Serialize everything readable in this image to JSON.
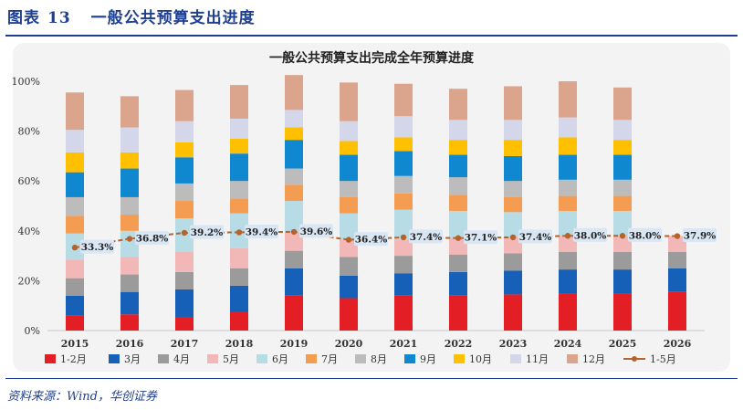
{
  "figure": {
    "label": "图表",
    "number": "13",
    "title": "一般公共预算支出进度"
  },
  "source": "资料来源：Wind，华创证券",
  "chart_data": {
    "type": "bar",
    "stacked": true,
    "title": "一般公共预算支出完成全年预算进度",
    "xlabel": "",
    "ylabel": "",
    "ylim": [
      0,
      100
    ],
    "yticks": [
      "0%",
      "20%",
      "40%",
      "60%",
      "80%",
      "100%"
    ],
    "categories": [
      "2015",
      "2016",
      "2017",
      "2018",
      "2019",
      "2020",
      "2021",
      "2022",
      "2023",
      "2024",
      "2025",
      "2026"
    ],
    "series": [
      {
        "name": "1-2月",
        "color": "#e31e24",
        "values": [
          6,
          6.5,
          5.5,
          7.5,
          14,
          13,
          14,
          14,
          14.5,
          15,
          15,
          15.5
        ]
      },
      {
        "name": "3月",
        "color": "#1660b8",
        "values": [
          8,
          9,
          11,
          10.5,
          11,
          9,
          9,
          9.5,
          9.5,
          9.5,
          9.5,
          9.5
        ]
      },
      {
        "name": "4月",
        "color": "#9b9b9b",
        "values": [
          7,
          7,
          7,
          7,
          7,
          7.5,
          7,
          7,
          7,
          7,
          7,
          6.5
        ]
      },
      {
        "name": "5月",
        "color": "#f2b7b7",
        "values": [
          7.5,
          7,
          8,
          8,
          7.5,
          7,
          6.5,
          6.5,
          6.5,
          6.5,
          6.5,
          6.5
        ]
      },
      {
        "name": "6月",
        "color": "#b8dce6",
        "values": [
          10.5,
          10.5,
          13.5,
          14,
          12.5,
          10.5,
          12,
          11,
          10,
          10,
          10,
          0
        ]
      },
      {
        "name": "7月",
        "color": "#f39c52",
        "values": [
          7,
          6.5,
          7,
          6,
          6.5,
          6.5,
          6.5,
          6.5,
          6,
          6,
          6,
          0
        ]
      },
      {
        "name": "8月",
        "color": "#bcbcbc",
        "values": [
          7.5,
          7,
          7,
          7,
          6.5,
          6.5,
          7,
          7,
          6.5,
          6.5,
          6.5,
          0
        ]
      },
      {
        "name": "9月",
        "color": "#1088d0",
        "values": [
          10,
          11.5,
          10.5,
          11,
          11.5,
          10.5,
          10,
          9,
          10,
          10,
          10,
          0
        ]
      },
      {
        "name": "10月",
        "color": "#ffc000",
        "values": [
          8,
          6.5,
          6,
          6,
          5,
          5.5,
          5.5,
          6,
          6.5,
          7,
          6,
          0
        ]
      },
      {
        "name": "11月",
        "color": "#d4d6ea",
        "values": [
          9,
          10,
          8.5,
          8,
          7,
          8,
          8.5,
          8,
          8,
          8,
          8,
          0
        ]
      },
      {
        "name": "12月",
        "color": "#dba48c",
        "values": [
          15,
          12.5,
          12.5,
          13.5,
          14,
          15.5,
          13,
          12.5,
          13.5,
          14.5,
          13,
          0
        ]
      }
    ],
    "line": {
      "name": "1-5月",
      "color": "#b5632c",
      "values": [
        33.3,
        36.8,
        39.2,
        39.4,
        39.6,
        36.4,
        37.4,
        37.1,
        37.4,
        38.0,
        38.0,
        37.9
      ],
      "labels": [
        "33.3%",
        "36.8%",
        "39.2%",
        "39.4%",
        "39.6%",
        "36.4%",
        "37.4%",
        "37.1%",
        "37.4%",
        "38.0%",
        "38.0%",
        "37.9%"
      ]
    },
    "legend": "bottom",
    "grid": false
  }
}
